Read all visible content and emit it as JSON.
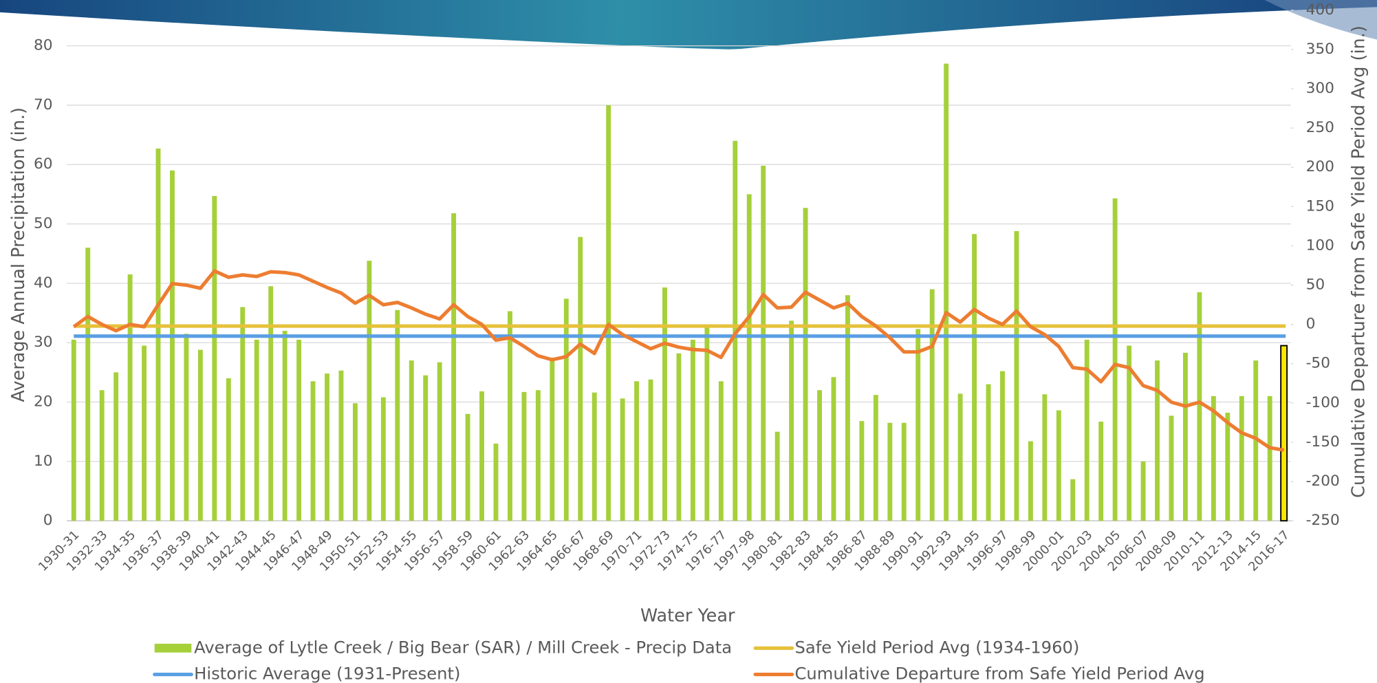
{
  "chart_data": {
    "type": "bar_line",
    "xlabel": "Water Year",
    "ylabel": "Average Annual Precipitation (in.)",
    "y2label": "Cumulative Departure from Safe Yield Period Avg (in.)",
    "categories": [
      "1930-31",
      null,
      "1932-33",
      null,
      "1934-35",
      null,
      "1936-37",
      null,
      "1938-39",
      null,
      "1940-41",
      null,
      "1942-43",
      null,
      "1944-45",
      null,
      "1946-47",
      null,
      "1948-49",
      null,
      "1950-51",
      null,
      "1952-53",
      null,
      "1954-55",
      null,
      "1956-57",
      null,
      "1958-59",
      null,
      "1960-61",
      null,
      "1962-63",
      null,
      "1964-65",
      null,
      "1966-67",
      null,
      "1968-69",
      null,
      "1970-71",
      null,
      "1972-73",
      null,
      "1974-75",
      null,
      "1976-77",
      null,
      "1997-98",
      null,
      "1980-81",
      null,
      "1982-83",
      null,
      "1984-85",
      null,
      "1986-87",
      null,
      "1988-89",
      null,
      "1990-91",
      null,
      "1992-93",
      null,
      "1994-95",
      null,
      "1996-97",
      null,
      "1998-99",
      null,
      "2000-01",
      null,
      "2002-03",
      null,
      "2004-05",
      null,
      "2006-07",
      null,
      "2008-09",
      null,
      "2010-11",
      null,
      "2012-13",
      null,
      "2014-15",
      null,
      "2016-17"
    ],
    "series": [
      {
        "name": "Average of Lytle Creek / Big Bear (SAR) / Mill Creek - Precip Data",
        "type": "bar",
        "color": "#a5d03a",
        "highlight": {
          "index": 86,
          "color": "#ffe600",
          "edgecolor": "#000000"
        },
        "values": [
          30.5,
          46,
          22,
          25,
          41.5,
          29.5,
          62.7,
          59,
          31.5,
          28.8,
          54.7,
          24,
          36,
          30.5,
          39.5,
          32,
          30.5,
          23.5,
          24.8,
          25.3,
          19.8,
          43.8,
          20.8,
          35.5,
          27,
          24.5,
          26.7,
          51.8,
          18,
          21.8,
          13,
          35.3,
          21.7,
          22,
          27.5,
          37.4,
          47.8,
          21.6,
          70,
          20.6,
          23.5,
          23.8,
          39.3,
          28.2,
          30.5,
          32.8,
          23.5,
          64,
          55,
          59.8,
          15,
          33.7,
          52.7,
          22,
          24.2,
          38,
          16.8,
          21.2,
          16.5,
          16.5,
          32.3,
          39,
          77,
          21.4,
          48.3,
          23,
          25.2,
          48.8,
          13.4,
          21.3,
          18.6,
          7,
          30.5,
          16.7,
          54.3,
          29.5,
          10,
          27,
          17.7,
          28.3,
          38.5,
          21,
          18.2,
          21,
          27,
          21,
          29.5
        ]
      },
      {
        "name": "Safe Yield Period Avg (1934-1960)",
        "type": "hline",
        "color": "#e6c13a",
        "value": 32.8
      },
      {
        "name": "Historic Average (1931-Present)",
        "type": "hline",
        "color": "#5b9fe3",
        "value": 31.1
      },
      {
        "name": "Cumulative Departure from Safe Yield Period Avg",
        "type": "line",
        "axis": "y2",
        "color": "#ed7d31",
        "values": [
          -3,
          10,
          0,
          -8,
          0,
          -3,
          25,
          52,
          50,
          46,
          68,
          60,
          63,
          61,
          67,
          66,
          63,
          55,
          47,
          40,
          27,
          37,
          25,
          28,
          21,
          13,
          7,
          25,
          10,
          0,
          -20,
          -17,
          -28,
          -40,
          -45,
          -41,
          -25,
          -37,
          0,
          -13,
          -22,
          -31,
          -24,
          -29,
          -32,
          -33,
          -42,
          -12,
          10,
          38,
          21,
          22,
          41,
          31,
          21,
          27,
          10,
          -2,
          -17,
          -35,
          -35,
          -28,
          15,
          3,
          19,
          8,
          0,
          17,
          -3,
          -13,
          -28,
          -55,
          -57,
          -73,
          -51,
          -55,
          -78,
          -84,
          -99,
          -104,
          -99,
          -110,
          -125,
          -138,
          -145,
          -157,
          -160
        ]
      }
    ],
    "ylim": [
      0,
      86
    ],
    "yticks": [
      0,
      10,
      20,
      30,
      40,
      50,
      60,
      70,
      80
    ],
    "y2lim": [
      -250,
      400
    ],
    "y2ticks": [
      -250,
      -200,
      -150,
      -100,
      -50,
      0,
      50,
      100,
      150,
      200,
      250,
      300,
      350,
      400
    ],
    "grid": true,
    "legend": "bottom"
  }
}
